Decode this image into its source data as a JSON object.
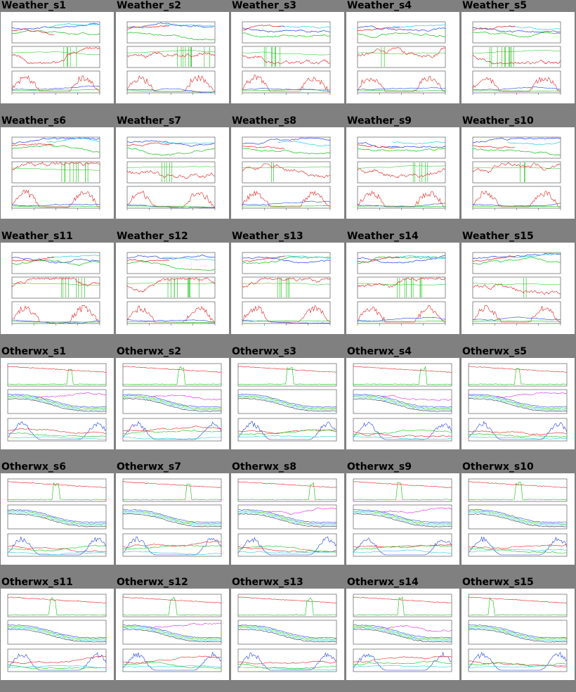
{
  "colors": {
    "background": "#808080",
    "thumbnail": "#ffffff",
    "series_red": "#e02020",
    "series_green": "#10c010",
    "series_blue": "#2040e0",
    "series_cyan": "#20d0e0",
    "series_magenta": "#e020e0"
  },
  "rows": [
    {
      "kind": "weather",
      "items": [
        "Weather_s1",
        "Weather_s2",
        "Weather_s3",
        "Weather_s4",
        "Weather_s5"
      ]
    },
    {
      "kind": "weather",
      "items": [
        "Weather_s6",
        "Weather_s7",
        "Weather_s8",
        "Weather_s9",
        "Weather_s10"
      ]
    },
    {
      "kind": "weather",
      "items": [
        "Weather_s11",
        "Weather_s12",
        "Weather_s13",
        "Weather_s14",
        "Weather_s15"
      ]
    },
    {
      "kind": "otherwx",
      "items": [
        "Otherwx_s1",
        "Otherwx_s2",
        "Otherwx_s3",
        "Otherwx_s4",
        "Otherwx_s5"
      ]
    },
    {
      "kind": "otherwx",
      "items": [
        "Otherwx_s6",
        "Otherwx_s7",
        "Otherwx_s8",
        "Otherwx_s9",
        "Otherwx_s10"
      ]
    },
    {
      "kind": "otherwx",
      "items": [
        "Otherwx_s11",
        "Otherwx_s12",
        "Otherwx_s13",
        "Otherwx_s14",
        "Otherwx_s15"
      ]
    }
  ]
}
